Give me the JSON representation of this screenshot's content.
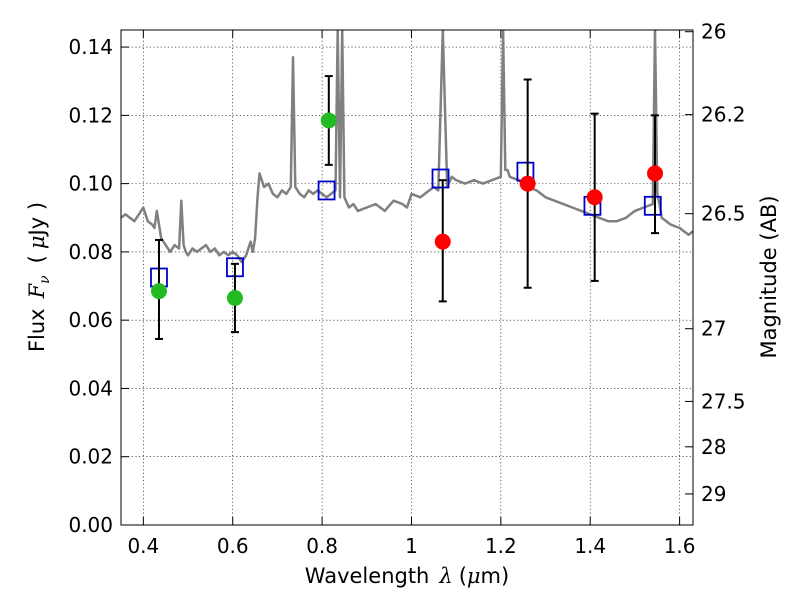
{
  "chart_data": {
    "type": "scatter",
    "title": "",
    "xlabel": "Wavelength",
    "xlabel_symbol": "λ",
    "xlabel_unit_open": "(",
    "xlabel_unit_mu": "μ",
    "xlabel_unit_rest": "m)",
    "ylabel": "Flux",
    "ylabel_symbol": "F",
    "ylabel_subscript": "ν",
    "ylabel_unit_open": "(",
    "ylabel_unit_mu": "μ",
    "ylabel_unit_rest": "Jy )",
    "y2label": "Magnitude (AB)",
    "xlim": [
      0.35,
      1.63
    ],
    "ylim": [
      0.0,
      0.145
    ],
    "grid": true,
    "x_ticks": [
      {
        "value": 0.4,
        "label": "0.4"
      },
      {
        "value": 0.6,
        "label": "0.6"
      },
      {
        "value": 0.8,
        "label": "0.8"
      },
      {
        "value": 1.0,
        "label": "1"
      },
      {
        "value": 1.2,
        "label": "1.2"
      },
      {
        "value": 1.4,
        "label": "1.4"
      },
      {
        "value": 1.6,
        "label": "1.6"
      }
    ],
    "y_ticks": [
      {
        "value": 0.0,
        "label": "0.00"
      },
      {
        "value": 0.02,
        "label": "0.02"
      },
      {
        "value": 0.04,
        "label": "0.04"
      },
      {
        "value": 0.06,
        "label": "0.06"
      },
      {
        "value": 0.08,
        "label": "0.08"
      },
      {
        "value": 0.1,
        "label": "0.10"
      },
      {
        "value": 0.12,
        "label": "0.12"
      },
      {
        "value": 0.14,
        "label": "0.14"
      }
    ],
    "y2_ticks": [
      {
        "flux": 0.1445,
        "label": "26"
      },
      {
        "flux": 0.1202,
        "label": "26.2"
      },
      {
        "flux": 0.0912,
        "label": "26.5"
      },
      {
        "flux": 0.0575,
        "label": "27"
      },
      {
        "flux": 0.0362,
        "label": "27.5"
      },
      {
        "flux": 0.0229,
        "label": "28"
      },
      {
        "flux": 0.0091,
        "label": "29"
      }
    ],
    "series": [
      {
        "kind": "model_spectrum",
        "color": "#808080",
        "x": [
          0.35,
          0.36,
          0.37,
          0.38,
          0.39,
          0.4,
          0.41,
          0.42,
          0.425,
          0.43,
          0.435,
          0.44,
          0.45,
          0.46,
          0.47,
          0.48,
          0.485,
          0.49,
          0.495,
          0.5,
          0.51,
          0.52,
          0.53,
          0.54,
          0.55,
          0.56,
          0.57,
          0.58,
          0.59,
          0.6,
          0.61,
          0.62,
          0.63,
          0.64,
          0.645,
          0.65,
          0.655,
          0.66,
          0.67,
          0.68,
          0.69,
          0.7,
          0.71,
          0.72,
          0.73,
          0.735,
          0.74,
          0.75,
          0.76,
          0.77,
          0.78,
          0.79,
          0.8,
          0.81,
          0.82,
          0.83,
          0.835,
          0.84,
          0.845,
          0.85,
          0.86,
          0.87,
          0.88,
          0.9,
          0.92,
          0.94,
          0.96,
          0.98,
          0.99,
          1.0,
          1.02,
          1.04,
          1.05,
          1.06,
          1.07,
          1.08,
          1.09,
          1.1,
          1.12,
          1.14,
          1.16,
          1.18,
          1.2,
          1.205,
          1.21,
          1.215,
          1.22,
          1.24,
          1.26,
          1.28,
          1.3,
          1.32,
          1.34,
          1.36,
          1.38,
          1.4,
          1.42,
          1.44,
          1.46,
          1.48,
          1.5,
          1.52,
          1.54,
          1.545,
          1.55,
          1.555,
          1.56,
          1.58,
          1.6,
          1.62,
          1.63
        ],
        "y": [
          0.09,
          0.091,
          0.09,
          0.089,
          0.091,
          0.093,
          0.089,
          0.088,
          0.087,
          0.092,
          0.088,
          0.084,
          0.082,
          0.08,
          0.082,
          0.081,
          0.095,
          0.082,
          0.08,
          0.079,
          0.081,
          0.08,
          0.081,
          0.082,
          0.08,
          0.081,
          0.079,
          0.08,
          0.079,
          0.08,
          0.079,
          0.077,
          0.079,
          0.083,
          0.08,
          0.084,
          0.095,
          0.103,
          0.099,
          0.1,
          0.097,
          0.096,
          0.098,
          0.097,
          0.099,
          0.137,
          0.099,
          0.097,
          0.096,
          0.098,
          0.097,
          0.098,
          0.097,
          0.096,
          0.097,
          0.098,
          0.145,
          0.096,
          0.145,
          0.096,
          0.093,
          0.094,
          0.092,
          0.093,
          0.094,
          0.092,
          0.095,
          0.094,
          0.093,
          0.097,
          0.096,
          0.098,
          0.099,
          0.098,
          0.145,
          0.099,
          0.102,
          0.101,
          0.1,
          0.101,
          0.1,
          0.101,
          0.102,
          0.145,
          0.104,
          0.104,
          0.102,
          0.101,
          0.099,
          0.098,
          0.096,
          0.095,
          0.094,
          0.093,
          0.092,
          0.091,
          0.09,
          0.089,
          0.089,
          0.09,
          0.092,
          0.093,
          0.094,
          0.145,
          0.097,
          0.094,
          0.09,
          0.088,
          0.087,
          0.085,
          0.086
        ]
      },
      {
        "kind": "model_photometry",
        "marker": "open-square",
        "color": "#0000cc",
        "x": [
          0.435,
          0.605,
          0.81,
          1.065,
          1.255,
          1.405,
          1.54
        ],
        "y": [
          0.0725,
          0.0755,
          0.098,
          0.1015,
          0.1035,
          0.0935,
          0.0935
        ]
      },
      {
        "kind": "observed_optical",
        "marker": "filled-circle",
        "color": "#22bb22",
        "x": [
          0.435,
          0.605,
          0.815
        ],
        "y": [
          0.0685,
          0.0665,
          0.1185
        ],
        "y_err_low": [
          0.0545,
          0.0565,
          0.1055
        ],
        "y_err_high": [
          0.0835,
          0.0765,
          0.1315
        ]
      },
      {
        "kind": "observed_nir",
        "marker": "filled-circle",
        "color": "#ff0000",
        "x": [
          1.07,
          1.26,
          1.41,
          1.545
        ],
        "y": [
          0.083,
          0.1,
          0.096,
          0.103
        ],
        "y_err_low": [
          0.0655,
          0.0695,
          0.0715,
          0.0855
        ],
        "y_err_high": [
          0.101,
          0.1305,
          0.1205,
          0.12
        ]
      }
    ]
  }
}
